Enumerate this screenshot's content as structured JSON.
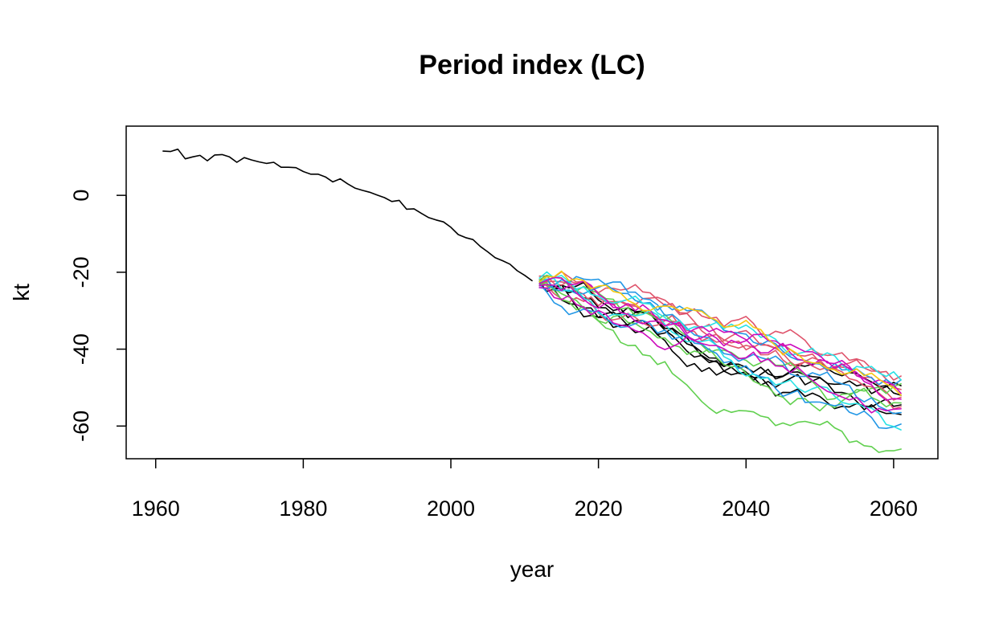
{
  "chart_data": {
    "type": "line",
    "title": "Period index (LC)",
    "xlabel": "year",
    "ylabel": "kt",
    "xlim": [
      1956,
      2066
    ],
    "ylim": [
      -68.5,
      18
    ],
    "xticks": [
      1960,
      1980,
      2000,
      2020,
      2040,
      2060
    ],
    "yticks": [
      0,
      -20,
      -40,
      -60
    ],
    "grid": false,
    "legend": "none",
    "historical": {
      "name": "",
      "color": "#000000",
      "x": [
        1961,
        1962,
        1963,
        1964,
        1965,
        1966,
        1967,
        1968,
        1969,
        1970,
        1971,
        1972,
        1973,
        1974,
        1975,
        1976,
        1977,
        1978,
        1979,
        1980,
        1981,
        1982,
        1983,
        1984,
        1985,
        1986,
        1987,
        1988,
        1989,
        1990,
        1991,
        1992,
        1993,
        1994,
        1995,
        1996,
        1997,
        1998,
        1999,
        2000,
        2001,
        2002,
        2003,
        2004,
        2005,
        2006,
        2007,
        2008,
        2009,
        2010,
        2011
      ],
      "values": [
        11.5,
        11.4,
        12.0,
        9.5,
        10.0,
        10.4,
        9.0,
        10.5,
        10.6,
        10.0,
        8.6,
        9.8,
        9.2,
        8.7,
        8.3,
        8.6,
        7.3,
        7.3,
        7.2,
        6.2,
        5.5,
        5.5,
        4.8,
        3.5,
        4.3,
        3.0,
        1.9,
        1.3,
        0.8,
        0.1,
        -0.6,
        -1.6,
        -1.3,
        -3.6,
        -3.5,
        -4.7,
        -5.8,
        -6.4,
        -6.9,
        -8.3,
        -10.2,
        -11.0,
        -11.5,
        -13.3,
        -14.7,
        -16.2,
        -17.0,
        -17.9,
        -19.6,
        -20.8,
        -22.2
      ]
    },
    "simulations": {
      "x_start": 2012,
      "x_end": 2061,
      "series": [
        {
          "color": "#000000",
          "start": -22.5,
          "end": -57.0
        },
        {
          "color": "#000000",
          "start": -23.0,
          "end": -52.0
        },
        {
          "color": "#000000",
          "start": -22.0,
          "end": -54.5
        },
        {
          "color": "#000000",
          "start": -23.5,
          "end": -49.5
        },
        {
          "color": "#df536b",
          "start": -21.0,
          "end": -47.0
        },
        {
          "color": "#df536b",
          "start": -22.0,
          "end": -52.5
        },
        {
          "color": "#df536b",
          "start": -23.0,
          "end": -50.5
        },
        {
          "color": "#df536b",
          "start": -22.5,
          "end": -55.0
        },
        {
          "color": "#61d04f",
          "start": -22.5,
          "end": -66.0
        },
        {
          "color": "#61d04f",
          "start": -23.0,
          "end": -49.0
        },
        {
          "color": "#61d04f",
          "start": -22.0,
          "end": -54.0
        },
        {
          "color": "#2297e6",
          "start": -23.0,
          "end": -59.5
        },
        {
          "color": "#2297e6",
          "start": -22.5,
          "end": -56.5
        },
        {
          "color": "#2297e6",
          "start": -24.0,
          "end": -48.0
        },
        {
          "color": "#28e2e5",
          "start": -21.5,
          "end": -48.0
        },
        {
          "color": "#28e2e5",
          "start": -22.5,
          "end": -61.0
        },
        {
          "color": "#cd0bbc",
          "start": -23.5,
          "end": -53.0
        },
        {
          "color": "#cd0bbc",
          "start": -24.0,
          "end": -55.5
        },
        {
          "color": "#cd0bbc",
          "start": -23.0,
          "end": -51.5
        },
        {
          "color": "#f5c710",
          "start": -22.5,
          "end": -52.0
        }
      ]
    }
  }
}
